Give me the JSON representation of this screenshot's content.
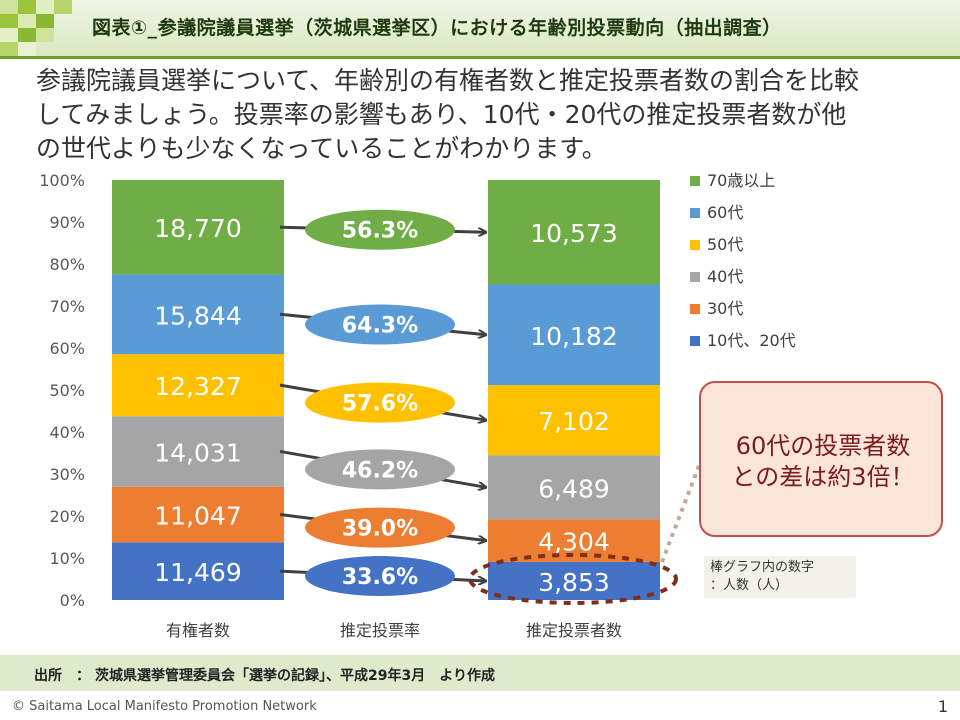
{
  "header": {
    "title": "図表①_参議院議員選挙（茨城県選挙区）における年齢別投票動向（抽出調査）"
  },
  "intro": {
    "line1": "参議院議員選挙について、年齢別の有権者数と推定投票者数の割合を比較",
    "line2": "してみましょう。投票率の影響もあり、10代・20代の推定投票者数が他",
    "line3": "の世代よりも少なくなっていることがわかります。"
  },
  "chart_data": {
    "type": "bar",
    "stacked": "percent",
    "categories": [
      "有権者数",
      "推定投票率",
      "推定投票者数"
    ],
    "y_ticks": [
      "0%",
      "10%",
      "20%",
      "30%",
      "40%",
      "50%",
      "60%",
      "70%",
      "80%",
      "90%",
      "100%"
    ],
    "ylim": [
      0,
      100
    ],
    "series": [
      {
        "name": "10代、20代",
        "color": "#4472c4",
        "eligible": 11469,
        "rate": "33.6%",
        "voters": 3853
      },
      {
        "name": "30代",
        "color": "#ed7d31",
        "eligible": 11047,
        "rate": "39.0%",
        "voters": 4304
      },
      {
        "name": "40代",
        "color": "#a5a5a5",
        "eligible": 14031,
        "rate": "46.2%",
        "voters": 6489
      },
      {
        "name": "50代",
        "color": "#ffc000",
        "eligible": 12327,
        "rate": "57.6%",
        "voters": 7102
      },
      {
        "name": "60代",
        "color": "#5b9bd5",
        "eligible": 15844,
        "rate": "64.3%",
        "voters": 10182
      },
      {
        "name": "70歳以上",
        "color": "#70ad47",
        "eligible": 18770,
        "rate": "56.3%",
        "voters": 10573
      }
    ],
    "legend_position": "right",
    "grid": false
  },
  "callout": {
    "line1": "60代の投票者数",
    "line2": "との差は約3倍！"
  },
  "note": {
    "line1": "棒グラフ内の数字",
    "line2": "：人数（人）"
  },
  "source": {
    "label": "出所",
    "colon": "：",
    "text": "茨城県選挙管理委員会「選挙の記録」、平成29年3月　より作成"
  },
  "footer": {
    "copyright": "© Saitama Local Manifesto Promotion Network",
    "page": "1"
  }
}
